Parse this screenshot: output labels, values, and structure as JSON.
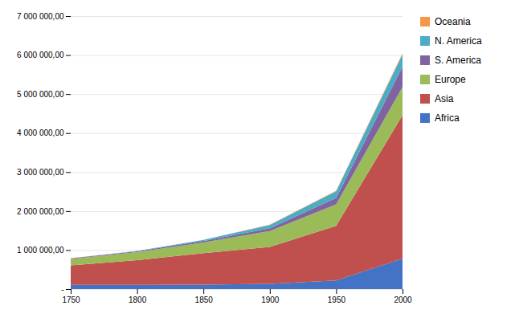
{
  "chart_data": {
    "type": "area",
    "stacked": true,
    "x": [
      1750,
      1800,
      1850,
      1900,
      1950,
      2000
    ],
    "series": [
      {
        "name": "Africa",
        "color": "#4472C4",
        "values": [
          106000,
          107000,
          111000,
          133000,
          221000,
          784000
        ]
      },
      {
        "name": "Asia",
        "color": "#C0504D",
        "values": [
          502000,
          635000,
          809000,
          947000,
          1402000,
          3672000
        ]
      },
      {
        "name": "Europe",
        "color": "#9BBB59",
        "values": [
          163000,
          203000,
          276000,
          408000,
          547000,
          729000
        ]
      },
      {
        "name": "S. America",
        "color": "#8064A2",
        "values": [
          16000,
          24000,
          38000,
          74000,
          167000,
          519000
        ]
      },
      {
        "name": "N. America",
        "color": "#4BACC6",
        "values": [
          2000,
          7000,
          26000,
          82000,
          172000,
          313000
        ]
      },
      {
        "name": "Oceania",
        "color": "#F79646",
        "values": [
          2000,
          2000,
          2000,
          6000,
          13000,
          31000
        ]
      }
    ],
    "xlim": [
      1750,
      2000
    ],
    "xticks": [
      1750,
      1800,
      1850,
      1900,
      1950,
      2000
    ],
    "ylim": [
      0,
      7000000
    ],
    "yticks": [
      {
        "value": 0,
        "label": "-"
      },
      {
        "value": 1000000,
        "label": "1 000 000,00"
      },
      {
        "value": 2000000,
        "label": "2 000 000,00"
      },
      {
        "value": 3000000,
        "label": "3 000 000,00"
      },
      {
        "value": 4000000,
        "label": "4 000 000,00"
      },
      {
        "value": 5000000,
        "label": "5 000 000,00"
      },
      {
        "value": 6000000,
        "label": "6 000 000,00"
      },
      {
        "value": 7000000,
        "label": "7 000 000,00"
      }
    ],
    "grid": true,
    "legend": "right"
  }
}
